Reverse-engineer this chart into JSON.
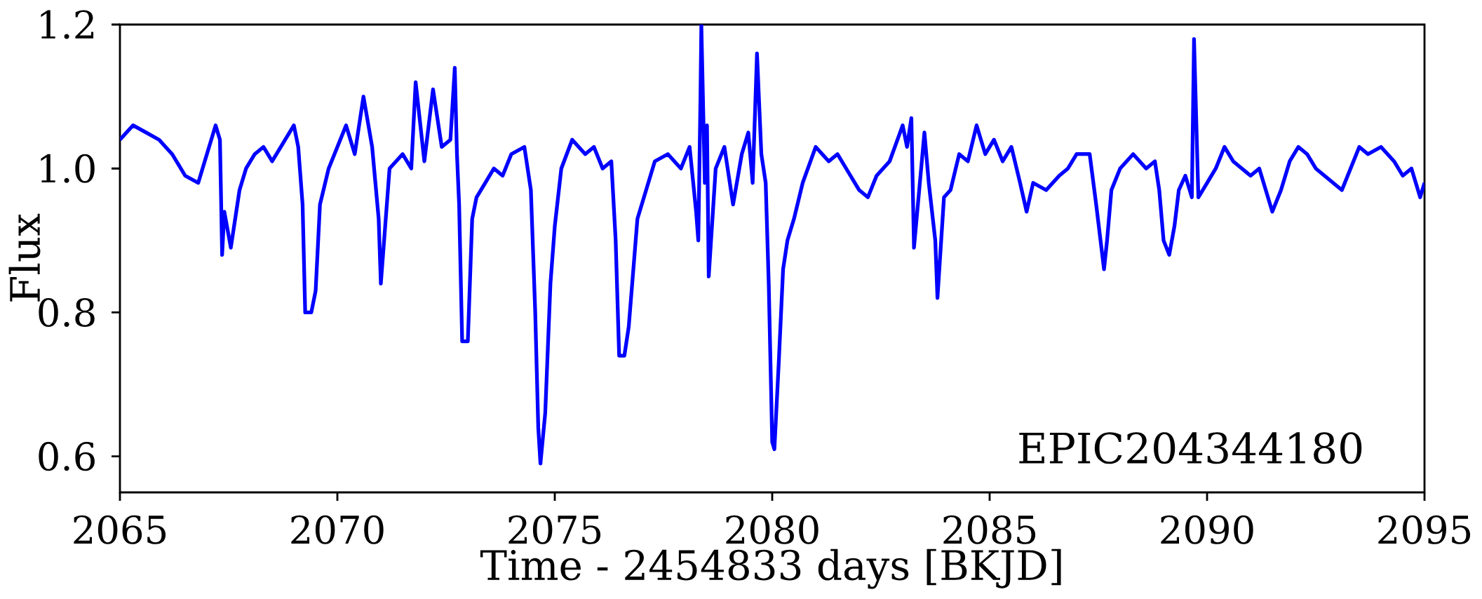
{
  "chart_data": {
    "type": "line",
    "xlabel": "Time - 2454833 days [BKJD]",
    "ylabel": "Flux",
    "annotations": [
      "EPIC204344180"
    ],
    "xlim": [
      2065,
      2095
    ],
    "ylim": [
      0.55,
      1.2
    ],
    "xticks": [
      2065,
      2070,
      2075,
      2080,
      2085,
      2090,
      2095
    ],
    "yticks": [
      {
        "value": 0.6,
        "label": "0.6"
      },
      {
        "value": 0.8,
        "label": "0.8"
      },
      {
        "value": 1.0,
        "label": "1.0"
      },
      {
        "value": 1.2,
        "label": "1.2"
      }
    ],
    "grid": false,
    "marker": "none",
    "line_style": "solid",
    "series": [
      {
        "color": "#0000ff",
        "x": [
          2065.0,
          2065.3,
          2065.6,
          2065.9,
          2066.2,
          2066.5,
          2066.8,
          2067.0,
          2067.2,
          2067.3,
          2067.35,
          2067.4,
          2067.55,
          2067.75,
          2067.9,
          2068.1,
          2068.3,
          2068.5,
          2068.8,
          2069.0,
          2069.1,
          2069.2,
          2069.26,
          2069.4,
          2069.5,
          2069.6,
          2069.8,
          2070.0,
          2070.2,
          2070.4,
          2070.6,
          2070.8,
          2070.95,
          2071.0,
          2071.1,
          2071.2,
          2071.5,
          2071.7,
          2071.8,
          2072.0,
          2072.2,
          2072.4,
          2072.6,
          2072.7,
          2072.75,
          2072.8,
          2072.87,
          2073.0,
          2073.1,
          2073.2,
          2073.4,
          2073.6,
          2073.8,
          2074.0,
          2074.3,
          2074.45,
          2074.55,
          2074.62,
          2074.67,
          2074.78,
          2074.9,
          2075.0,
          2075.15,
          2075.4,
          2075.7,
          2075.9,
          2076.1,
          2076.3,
          2076.4,
          2076.48,
          2076.6,
          2076.7,
          2076.9,
          2077.1,
          2077.3,
          2077.6,
          2077.9,
          2078.1,
          2078.25,
          2078.3,
          2078.35,
          2078.37,
          2078.45,
          2078.5,
          2078.54,
          2078.7,
          2078.9,
          2079.1,
          2079.3,
          2079.45,
          2079.55,
          2079.65,
          2079.75,
          2079.85,
          2079.92,
          2080.0,
          2080.05,
          2080.15,
          2080.25,
          2080.35,
          2080.5,
          2080.7,
          2081.0,
          2081.3,
          2081.5,
          2081.8,
          2082.0,
          2082.2,
          2082.4,
          2082.7,
          2083.0,
          2083.1,
          2083.2,
          2083.26,
          2083.5,
          2083.6,
          2083.75,
          2083.8,
          2083.95,
          2084.1,
          2084.3,
          2084.5,
          2084.7,
          2084.9,
          2085.1,
          2085.3,
          2085.5,
          2085.7,
          2085.85,
          2086.0,
          2086.3,
          2086.6,
          2086.8,
          2087.0,
          2087.3,
          2087.45,
          2087.55,
          2087.63,
          2087.7,
          2087.8,
          2088.0,
          2088.3,
          2088.6,
          2088.8,
          2088.9,
          2089.0,
          2089.13,
          2089.25,
          2089.35,
          2089.5,
          2089.65,
          2089.7,
          2089.8,
          2090.0,
          2090.2,
          2090.4,
          2090.6,
          2090.8,
          2091.0,
          2091.2,
          2091.4,
          2091.5,
          2091.7,
          2091.9,
          2092.1,
          2092.3,
          2092.5,
          2092.7,
          2092.9,
          2093.1,
          2093.3,
          2093.5,
          2093.7,
          2094.0,
          2094.3,
          2094.5,
          2094.7,
          2094.9,
          2095.0
        ],
        "values": [
          1.04,
          1.06,
          1.05,
          1.04,
          1.02,
          0.99,
          0.98,
          1.02,
          1.06,
          1.04,
          0.88,
          0.94,
          0.89,
          0.97,
          1.0,
          1.02,
          1.03,
          1.01,
          1.04,
          1.06,
          1.03,
          0.95,
          0.8,
          0.8,
          0.83,
          0.95,
          1.0,
          1.03,
          1.06,
          1.02,
          1.1,
          1.03,
          0.93,
          0.84,
          0.92,
          1.0,
          1.02,
          1.0,
          1.12,
          1.01,
          1.11,
          1.03,
          1.04,
          1.14,
          1.02,
          0.95,
          0.76,
          0.76,
          0.93,
          0.96,
          0.98,
          1.0,
          0.99,
          1.02,
          1.03,
          0.97,
          0.8,
          0.64,
          0.59,
          0.66,
          0.84,
          0.92,
          1.0,
          1.04,
          1.02,
          1.03,
          1.0,
          1.01,
          0.9,
          0.74,
          0.74,
          0.78,
          0.93,
          0.97,
          1.01,
          1.02,
          1.0,
          1.03,
          0.94,
          0.9,
          1.1,
          1.2,
          0.98,
          1.06,
          0.85,
          1.0,
          1.03,
          0.95,
          1.02,
          1.05,
          0.98,
          1.16,
          1.02,
          0.98,
          0.84,
          0.62,
          0.61,
          0.73,
          0.86,
          0.9,
          0.93,
          0.98,
          1.03,
          1.01,
          1.02,
          0.99,
          0.97,
          0.96,
          0.99,
          1.01,
          1.06,
          1.03,
          1.07,
          0.89,
          1.05,
          0.98,
          0.9,
          0.82,
          0.96,
          0.97,
          1.02,
          1.01,
          1.06,
          1.02,
          1.04,
          1.01,
          1.03,
          0.98,
          0.94,
          0.98,
          0.97,
          0.99,
          1.0,
          1.02,
          1.02,
          0.95,
          0.9,
          0.86,
          0.9,
          0.97,
          1.0,
          1.02,
          1.0,
          1.01,
          0.97,
          0.9,
          0.88,
          0.92,
          0.97,
          0.99,
          0.96,
          1.18,
          0.96,
          0.98,
          1.0,
          1.03,
          1.01,
          1.0,
          0.99,
          1.0,
          0.96,
          0.94,
          0.97,
          1.01,
          1.03,
          1.02,
          1.0,
          0.99,
          0.98,
          0.97,
          1.0,
          1.03,
          1.02,
          1.03,
          1.01,
          0.99,
          1.0,
          0.96,
          0.98
        ]
      }
    ]
  }
}
